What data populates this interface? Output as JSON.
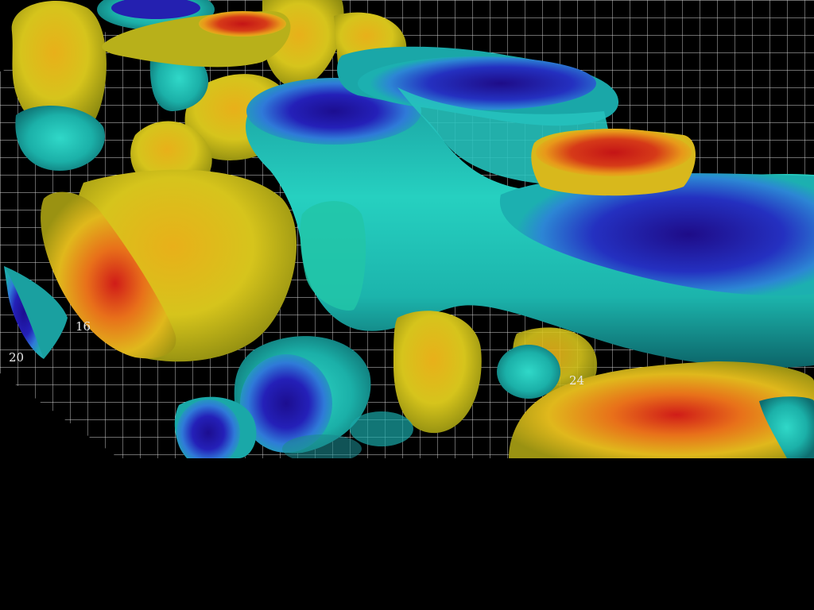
{
  "scene": {
    "background": "#000000",
    "grid_color": "#ffffff",
    "axis_ticks": [
      {
        "label": "20"
      },
      {
        "label": "16"
      },
      {
        "label": "24"
      }
    ],
    "colormap": [
      "#1a1a9c",
      "#2f6fd6",
      "#1fc8c0",
      "#d4c81e",
      "#e89a1a",
      "#c8201c"
    ]
  }
}
